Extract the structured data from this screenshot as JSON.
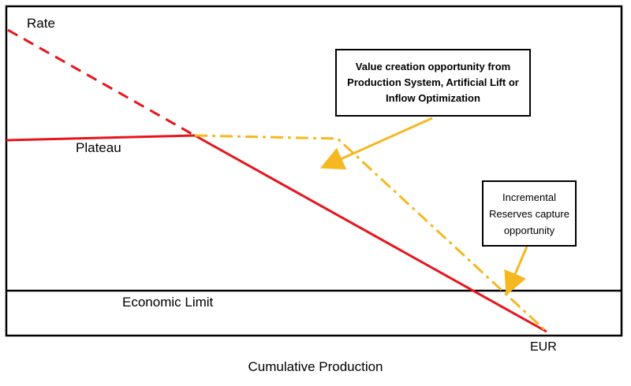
{
  "labels": {
    "rate": "Rate",
    "plateau": "Plateau",
    "economic_limit": "Economic Limit",
    "eur": "EUR",
    "x_axis": "Cumulative Production"
  },
  "callouts": {
    "value_creation": "Value creation opportunity from\nProduction System, Artificial Lift or\nInflow Optimization",
    "incremental_reserves": "Incremental\nReserves capture\nopportunity"
  },
  "colors": {
    "base_decline": "#e8141b",
    "optimized_profile": "#f5b820",
    "frame": "#000000"
  }
}
